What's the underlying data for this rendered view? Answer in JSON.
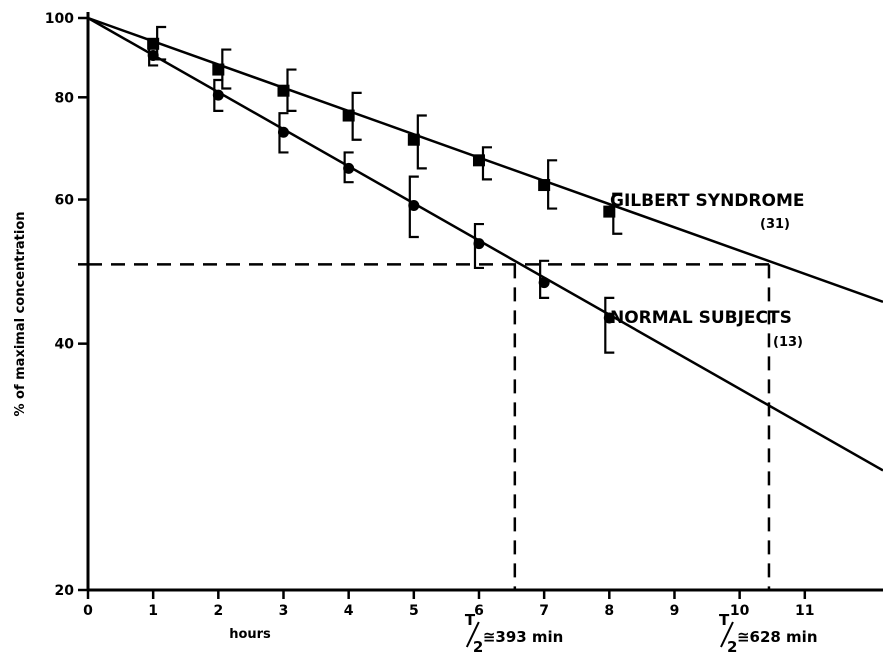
{
  "chart_data": {
    "type": "line",
    "ylabel": "% of maximal concentration",
    "xlabel": "hours",
    "y_scale": "log",
    "xlim": [
      0,
      12.2
    ],
    "ylim": [
      20,
      100
    ],
    "x_ticks": [
      0,
      1,
      2,
      3,
      4,
      5,
      6,
      7,
      8,
      9,
      10,
      11
    ],
    "y_ticks": [
      20,
      40,
      50,
      60,
      80,
      100
    ],
    "y_tick_labels": [
      "20",
      "40",
      "",
      "60",
      "80",
      "100"
    ],
    "reference_level": 50,
    "series": [
      {
        "name": "GILBERT SYNDROME",
        "n_label": "(31)",
        "marker": "square",
        "x": [
          1,
          2,
          3,
          4,
          5,
          6,
          7,
          8
        ],
        "y": [
          93,
          86.5,
          81.5,
          76,
          71,
          67,
          62.5,
          58
        ],
        "err_low": [
          89,
          82,
          77,
          71,
          65.5,
          63.5,
          58.5,
          54.5
        ],
        "err_high": [
          97.5,
          91.5,
          86.5,
          81,
          76,
          69.5,
          67,
          61
        ],
        "fit_start": [
          0,
          100
        ],
        "fit_end": [
          12.2,
          45
        ],
        "half_life_x": 10.45,
        "half_life_label": "≅628 min"
      },
      {
        "name": "NORMAL SUBJECTS",
        "n_label": "(13)",
        "marker": "circle",
        "x": [
          1,
          2,
          3,
          4,
          5,
          6,
          7,
          8
        ],
        "y": [
          90,
          80.5,
          72.5,
          65.5,
          59,
          53,
          47.5,
          43
        ],
        "err_low": [
          87.5,
          77,
          68.5,
          63,
          54,
          49.5,
          45.5,
          39
        ],
        "err_high": [
          92,
          84,
          76.5,
          68.5,
          64,
          56,
          50.5,
          45.5
        ],
        "fit_start": [
          0,
          100
        ],
        "fit_end": [
          12.2,
          28
        ],
        "half_life_x": 6.55,
        "half_life_label": "≅393 min"
      }
    ],
    "half_life_symbol": "T",
    "half_life_sub": "2"
  }
}
